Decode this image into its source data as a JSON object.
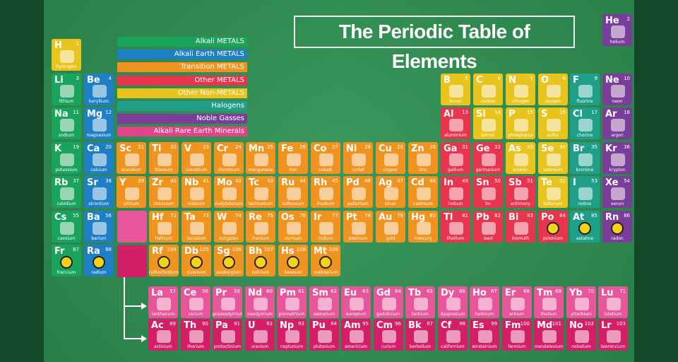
{
  "title": "The Periodic Table of Elements",
  "legend": [
    {
      "label": "Alkali METALS",
      "color": "#1aa35c"
    },
    {
      "label": "Alkali Earth METALS",
      "color": "#1f7fc4"
    },
    {
      "label": "Transition METALS",
      "color": "#f0931f"
    },
    {
      "label": "Other METALS",
      "color": "#e8344d"
    },
    {
      "label": "Other Non-METALS",
      "color": "#e9c41f"
    },
    {
      "label": "Halogens",
      "color": "#1f9f8a"
    },
    {
      "label": "Noble Gasses",
      "color": "#7a3d9a"
    },
    {
      "label": "Alkali Rare Earth Minerals",
      "color": "#e24389"
    }
  ],
  "colors": {
    "alkali": "#1aa35c",
    "earth": "#1f7fc4",
    "transition": "#f0931f",
    "other": "#e8344d",
    "nonmetal": "#e9c41f",
    "halogen": "#1f9f8a",
    "noble": "#7a3d9a",
    "lanth": "#e8559a",
    "act": "#d41f68",
    "hydrogen": "#e9c41f"
  },
  "elements": [
    {
      "s": "H",
      "n": 1,
      "name": "hydrogen",
      "c": "hydrogen",
      "col": 0,
      "row": 0
    },
    {
      "s": "He",
      "n": 2,
      "name": "helium",
      "c": "noble",
      "col": 17,
      "row": 0
    },
    {
      "s": "Li",
      "n": 3,
      "name": "lithium",
      "c": "alkali",
      "col": 0,
      "row": 1
    },
    {
      "s": "Be",
      "n": 4,
      "name": "beryllium",
      "c": "earth",
      "col": 1,
      "row": 1
    },
    {
      "s": "B",
      "n": 5,
      "name": "boron",
      "c": "nonmetal",
      "col": 12,
      "row": 1
    },
    {
      "s": "C",
      "n": 6,
      "name": "carbon",
      "c": "nonmetal",
      "col": 13,
      "row": 1
    },
    {
      "s": "N",
      "n": 7,
      "name": "nitrogen",
      "c": "nonmetal",
      "col": 14,
      "row": 1
    },
    {
      "s": "O",
      "n": 8,
      "name": "oxygen",
      "c": "nonmetal",
      "col": 15,
      "row": 1
    },
    {
      "s": "F",
      "n": 9,
      "name": "fluorine",
      "c": "halogen",
      "col": 16,
      "row": 1
    },
    {
      "s": "Ne",
      "n": 10,
      "name": "neon",
      "c": "noble",
      "col": 17,
      "row": 1
    },
    {
      "s": "Na",
      "n": 11,
      "name": "sodium",
      "c": "alkali",
      "col": 0,
      "row": 2
    },
    {
      "s": "Mg",
      "n": 12,
      "name": "magnesium",
      "c": "earth",
      "col": 1,
      "row": 2
    },
    {
      "s": "Al",
      "n": 13,
      "name": "aluminium",
      "c": "other",
      "col": 12,
      "row": 2
    },
    {
      "s": "Si",
      "n": 14,
      "name": "silicon",
      "c": "nonmetal",
      "col": 13,
      "row": 2
    },
    {
      "s": "P",
      "n": 15,
      "name": "phosphorus",
      "c": "nonmetal",
      "col": 14,
      "row": 2
    },
    {
      "s": "S",
      "n": 16,
      "name": "sulfur",
      "c": "nonmetal",
      "col": 15,
      "row": 2
    },
    {
      "s": "Cl",
      "n": 17,
      "name": "chorine",
      "c": "halogen",
      "col": 16,
      "row": 2
    },
    {
      "s": "Ar",
      "n": 18,
      "name": "argon",
      "c": "noble",
      "col": 17,
      "row": 2
    },
    {
      "s": "K",
      "n": 19,
      "name": "potassium",
      "c": "alkali",
      "col": 0,
      "row": 3
    },
    {
      "s": "Ca",
      "n": 20,
      "name": "calcium",
      "c": "earth",
      "col": 1,
      "row": 3
    },
    {
      "s": "Sc",
      "n": 21,
      "name": "scandium",
      "c": "transition",
      "col": 2,
      "row": 3
    },
    {
      "s": "Ti",
      "n": 22,
      "name": "titanium",
      "c": "transition",
      "col": 3,
      "row": 3
    },
    {
      "s": "V",
      "n": 23,
      "name": "vanadium",
      "c": "transition",
      "col": 4,
      "row": 3
    },
    {
      "s": "Cr",
      "n": 24,
      "name": "chromium",
      "c": "transition",
      "col": 5,
      "row": 3
    },
    {
      "s": "Mn",
      "n": 25,
      "name": "manganese",
      "c": "transition",
      "col": 6,
      "row": 3
    },
    {
      "s": "Fe",
      "n": 26,
      "name": "iron",
      "c": "transition",
      "col": 7,
      "row": 3
    },
    {
      "s": "Co",
      "n": 27,
      "name": "cobalt",
      "c": "transition",
      "col": 8,
      "row": 3
    },
    {
      "s": "Ni",
      "n": 28,
      "name": "nickel",
      "c": "transition",
      "col": 9,
      "row": 3
    },
    {
      "s": "Cu",
      "n": 29,
      "name": "copper",
      "c": "transition",
      "col": 10,
      "row": 3
    },
    {
      "s": "Zn",
      "n": 30,
      "name": "zinc",
      "c": "transition",
      "col": 11,
      "row": 3
    },
    {
      "s": "Ga",
      "n": 31,
      "name": "gallium",
      "c": "other",
      "col": 12,
      "row": 3
    },
    {
      "s": "Ge",
      "n": 32,
      "name": "germanium",
      "c": "other",
      "col": 13,
      "row": 3
    },
    {
      "s": "As",
      "n": 33,
      "name": "arsenic",
      "c": "nonmetal",
      "col": 14,
      "row": 3
    },
    {
      "s": "Se",
      "n": 34,
      "name": "selenium",
      "c": "nonmetal",
      "col": 15,
      "row": 3
    },
    {
      "s": "Br",
      "n": 35,
      "name": "bromine",
      "c": "halogen",
      "col": 16,
      "row": 3
    },
    {
      "s": "Kr",
      "n": 36,
      "name": "krypton",
      "c": "noble",
      "col": 17,
      "row": 3
    },
    {
      "s": "Rb",
      "n": 37,
      "name": "rubidium",
      "c": "alkali",
      "col": 0,
      "row": 4
    },
    {
      "s": "Sr",
      "n": 38,
      "name": "strontium",
      "c": "earth",
      "col": 1,
      "row": 4
    },
    {
      "s": "Y",
      "n": 39,
      "name": "yttrium",
      "c": "transition",
      "col": 2,
      "row": 4
    },
    {
      "s": "Zr",
      "n": 40,
      "name": "zirconium",
      "c": "transition",
      "col": 3,
      "row": 4
    },
    {
      "s": "Nb",
      "n": 41,
      "name": "niobium",
      "c": "transition",
      "col": 4,
      "row": 4
    },
    {
      "s": "Mo",
      "n": 42,
      "name": "molybdenum",
      "c": "transition",
      "col": 5,
      "row": 4
    },
    {
      "s": "Tc",
      "n": 43,
      "name": "technetium",
      "c": "transition",
      "col": 6,
      "row": 4
    },
    {
      "s": "Ru",
      "n": 44,
      "name": "ruthenium",
      "c": "transition",
      "col": 7,
      "row": 4
    },
    {
      "s": "Rh",
      "n": 45,
      "name": "rhodium",
      "c": "transition",
      "col": 8,
      "row": 4
    },
    {
      "s": "Pd",
      "n": 46,
      "name": "palladium",
      "c": "transition",
      "col": 9,
      "row": 4
    },
    {
      "s": "Ag",
      "n": 47,
      "name": "silver",
      "c": "transition",
      "col": 10,
      "row": 4
    },
    {
      "s": "Cd",
      "n": 48,
      "name": "cadmium",
      "c": "transition",
      "col": 11,
      "row": 4
    },
    {
      "s": "In",
      "n": 49,
      "name": "indium",
      "c": "other",
      "col": 12,
      "row": 4
    },
    {
      "s": "Sn",
      "n": 50,
      "name": "tin",
      "c": "other",
      "col": 13,
      "row": 4
    },
    {
      "s": "Sb",
      "n": 51,
      "name": "antimony",
      "c": "other",
      "col": 14,
      "row": 4
    },
    {
      "s": "Te",
      "n": 52,
      "name": "tellurium",
      "c": "nonmetal",
      "col": 15,
      "row": 4
    },
    {
      "s": "I",
      "n": 53,
      "name": "iodine",
      "c": "halogen",
      "col": 16,
      "row": 4
    },
    {
      "s": "Xe",
      "n": 54,
      "name": "xenon",
      "c": "noble",
      "col": 17,
      "row": 4
    },
    {
      "s": "Cs",
      "n": 55,
      "name": "caesium",
      "c": "alkali",
      "col": 0,
      "row": 5
    },
    {
      "s": "Ba",
      "n": 56,
      "name": "barium",
      "c": "earth",
      "col": 1,
      "row": 5
    },
    {
      "s": "Hf",
      "n": 72,
      "name": "hafnium",
      "c": "transition",
      "col": 3,
      "row": 5
    },
    {
      "s": "Ta",
      "n": 73,
      "name": "tantalum",
      "c": "transition",
      "col": 4,
      "row": 5
    },
    {
      "s": "W",
      "n": 74,
      "name": "tungsten",
      "c": "transition",
      "col": 5,
      "row": 5
    },
    {
      "s": "Re",
      "n": 75,
      "name": "rhenium",
      "c": "transition",
      "col": 6,
      "row": 5
    },
    {
      "s": "Os",
      "n": 76,
      "name": "osmium",
      "c": "transition",
      "col": 7,
      "row": 5
    },
    {
      "s": "Ir",
      "n": 77,
      "name": "iridium",
      "c": "transition",
      "col": 8,
      "row": 5
    },
    {
      "s": "Pt",
      "n": 78,
      "name": "platinum",
      "c": "transition",
      "col": 9,
      "row": 5
    },
    {
      "s": "Au",
      "n": 79,
      "name": "gold",
      "c": "transition",
      "col": 10,
      "row": 5
    },
    {
      "s": "Hg",
      "n": 80,
      "name": "mercury",
      "c": "transition",
      "col": 11,
      "row": 5
    },
    {
      "s": "Tl",
      "n": 81,
      "name": "thallium",
      "c": "other",
      "col": 12,
      "row": 5
    },
    {
      "s": "Pb",
      "n": 82,
      "name": "lead",
      "c": "other",
      "col": 13,
      "row": 5
    },
    {
      "s": "Bi",
      "n": 83,
      "name": "bismuth",
      "c": "other",
      "col": 14,
      "row": 5
    },
    {
      "s": "Po",
      "n": 84,
      "name": "polonium",
      "c": "other",
      "col": 15,
      "row": 5,
      "rad": true
    },
    {
      "s": "At",
      "n": 85,
      "name": "astatine",
      "c": "halogen",
      "col": 16,
      "row": 5,
      "rad": true
    },
    {
      "s": "Rn",
      "n": 86,
      "name": "radon",
      "c": "noble",
      "col": 17,
      "row": 5,
      "rad": true
    },
    {
      "s": "Fr",
      "n": 87,
      "name": "francium",
      "c": "alkali",
      "col": 0,
      "row": 6,
      "rad": true
    },
    {
      "s": "Ra",
      "n": 88,
      "name": "radium",
      "c": "earth",
      "col": 1,
      "row": 6,
      "rad": true
    },
    {
      "s": "Rf",
      "n": 104,
      "name": "rutherfordium",
      "c": "transition",
      "col": 3,
      "row": 6,
      "rad": true
    },
    {
      "s": "Db",
      "n": 105,
      "name": "dubnium",
      "c": "transition",
      "col": 4,
      "row": 6,
      "rad": true
    },
    {
      "s": "Sg",
      "n": 106,
      "name": "seaborgium",
      "c": "transition",
      "col": 5,
      "row": 6,
      "rad": true
    },
    {
      "s": "Bh",
      "n": 107,
      "name": "bohrium",
      "c": "transition",
      "col": 6,
      "row": 6,
      "rad": true
    },
    {
      "s": "Hs",
      "n": 108,
      "name": "hassium",
      "c": "transition",
      "col": 7,
      "row": 6,
      "rad": true
    },
    {
      "s": "Mt",
      "n": 109,
      "name": "meitnerium",
      "c": "transition",
      "col": 8,
      "row": 6,
      "rad": true
    }
  ],
  "lanthanides": [
    {
      "s": "La",
      "n": 57,
      "name": "lanthanum"
    },
    {
      "s": "Ce",
      "n": 58,
      "name": "cerium"
    },
    {
      "s": "Pr",
      "n": 59,
      "name": "praseodymium"
    },
    {
      "s": "Nd",
      "n": 60,
      "name": "neodymium"
    },
    {
      "s": "Pm",
      "n": 61,
      "name": "promethium"
    },
    {
      "s": "Sm",
      "n": 62,
      "name": "samarium"
    },
    {
      "s": "Eu",
      "n": 63,
      "name": "europium"
    },
    {
      "s": "Gd",
      "n": 64,
      "name": "gadolinium"
    },
    {
      "s": "Tb",
      "n": 65,
      "name": "terbium"
    },
    {
      "s": "Dy",
      "n": 66,
      "name": "dysprosium"
    },
    {
      "s": "Ho",
      "n": 67,
      "name": "holmium"
    },
    {
      "s": "Er",
      "n": 68,
      "name": "erbium"
    },
    {
      "s": "Tm",
      "n": 69,
      "name": "thulium"
    },
    {
      "s": "Yb",
      "n": 70,
      "name": "ytterbium"
    },
    {
      "s": "Lu",
      "n": 71,
      "name": "lutetium"
    }
  ],
  "actinides": [
    {
      "s": "Ac",
      "n": 89,
      "name": "actinium"
    },
    {
      "s": "Th",
      "n": 90,
      "name": "thorium"
    },
    {
      "s": "Pa",
      "n": 91,
      "name": "protactinium"
    },
    {
      "s": "U",
      "n": 92,
      "name": "uranium"
    },
    {
      "s": "Np",
      "n": 93,
      "name": "neptunium"
    },
    {
      "s": "Pu",
      "n": 94,
      "name": "plutonium"
    },
    {
      "s": "Am",
      "n": 95,
      "name": "americium"
    },
    {
      "s": "Cm",
      "n": 96,
      "name": "curium"
    },
    {
      "s": "Bk",
      "n": 97,
      "name": "berkelium"
    },
    {
      "s": "Cf",
      "n": 98,
      "name": "californium"
    },
    {
      "s": "Es",
      "n": 99,
      "name": "einsteinium"
    },
    {
      "s": "Fm",
      "n": 100,
      "name": "fermium"
    },
    {
      "s": "Md",
      "n": 101,
      "name": "mendelevium"
    },
    {
      "s": "No",
      "n": 102,
      "name": "nobelium"
    },
    {
      "s": "Lr",
      "n": 103,
      "name": "lawrencium"
    }
  ]
}
